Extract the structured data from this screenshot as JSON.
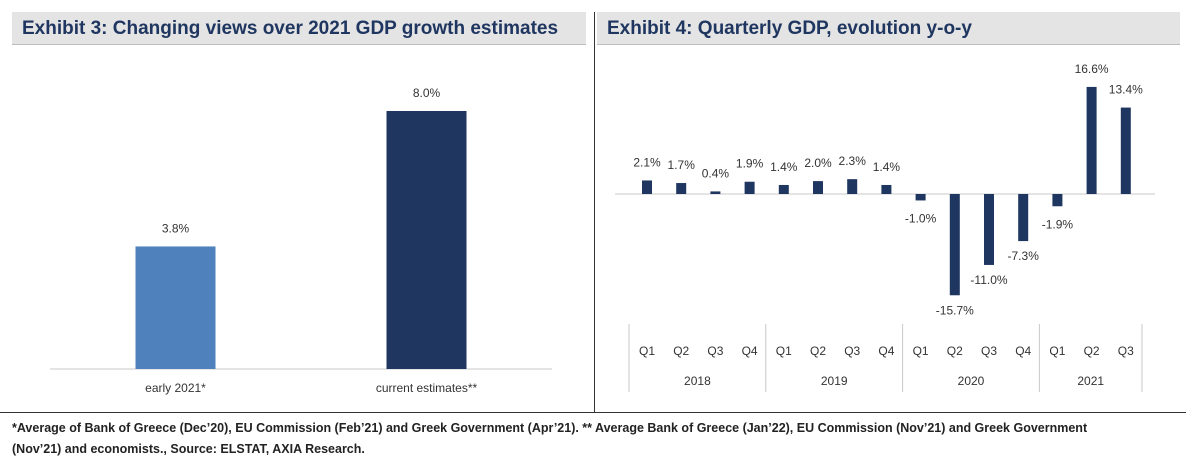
{
  "exhibit3": {
    "title": "Exhibit 3: Changing views over 2021 GDP growth estimates",
    "chart_data": {
      "type": "bar",
      "title": "Exhibit 3: Changing views over 2021 GDP growth estimates",
      "categories": [
        "early 2021*",
        "current estimates**"
      ],
      "values": [
        3.8,
        8.0
      ],
      "value_labels": [
        "3.8%",
        "8.0%"
      ],
      "colors": [
        "#4f81bd",
        "#1f3660"
      ],
      "ylim": [
        0,
        10
      ],
      "grid": false
    }
  },
  "exhibit4": {
    "title": "Exhibit 4: Quarterly GDP, evolution y-o-y",
    "chart_data": {
      "type": "bar",
      "title": "Exhibit 4: Quarterly GDP, evolution y-o-y",
      "categories": [
        "Q1",
        "Q2",
        "Q3",
        "Q4",
        "Q1",
        "Q2",
        "Q3",
        "Q4",
        "Q1",
        "Q2",
        "Q3",
        "Q4",
        "Q1",
        "Q2",
        "Q3"
      ],
      "years": [
        {
          "label": "2018",
          "quarters": 4
        },
        {
          "label": "2019",
          "quarters": 4
        },
        {
          "label": "2020",
          "quarters": 4
        },
        {
          "label": "2021",
          "quarters": 3
        }
      ],
      "values": [
        2.1,
        1.7,
        0.4,
        1.9,
        1.4,
        2.0,
        2.3,
        1.4,
        -1.0,
        -15.7,
        -11.0,
        -7.3,
        -1.9,
        16.6,
        13.4
      ],
      "value_labels": [
        "2.1%",
        "1.7%",
        "0.4%",
        "1.9%",
        "1.4%",
        "2.0%",
        "2.3%",
        "1.4%",
        "-1.0%",
        "-15.7%",
        "-11.0%",
        "-7.3%",
        "-1.9%",
        "16.6%",
        "13.4%"
      ],
      "color": "#1f3660",
      "ylim": [
        -16,
        17
      ],
      "grid": false
    }
  },
  "footnote": {
    "line1": "*Average of Bank of Greece (Dec’20), EU Commission (Feb’21) and Greek Government (Apr’21). ** Average Bank of Greece (Jan’22), EU Commission (Nov’21) and Greek Government",
    "line2": "(Nov’21) and economists., Source: ELSTAT, AXIA Research."
  }
}
